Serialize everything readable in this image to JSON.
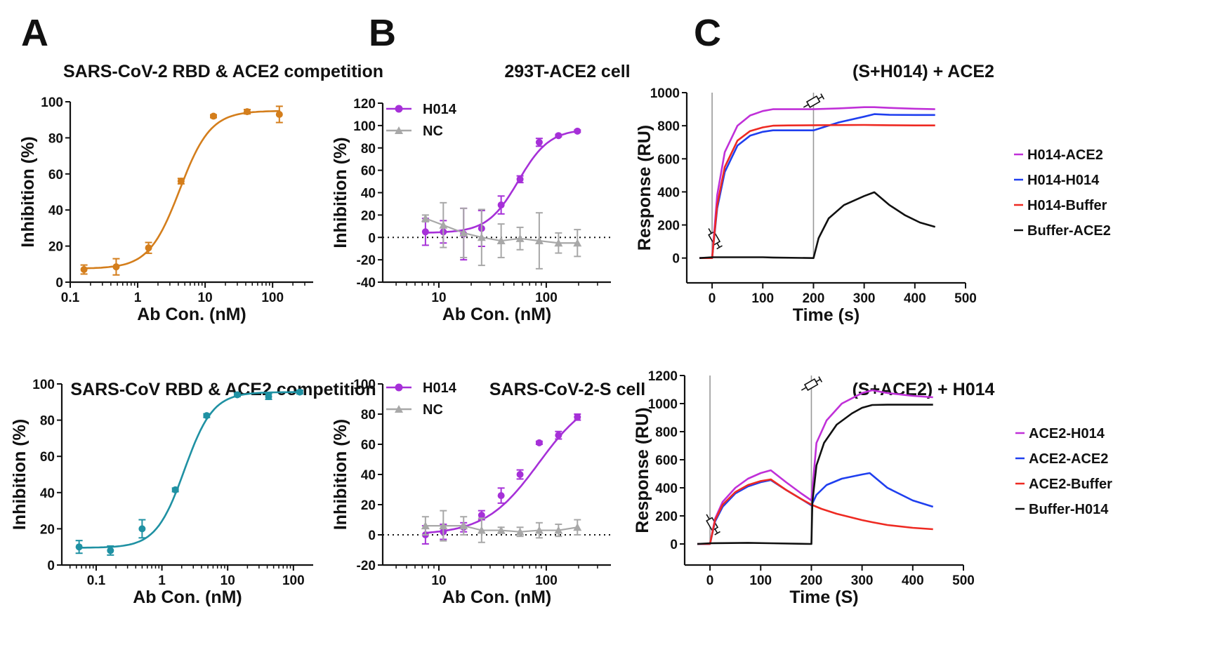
{
  "chart_data": [
    {
      "panel": "A",
      "type": "scatter",
      "title": "SARS-CoV-2  RBD & ACE2 competition",
      "xlabel": "Ab Con. (nM)",
      "ylabel": "Inhibition (%)",
      "xscale": "log",
      "xlim": [
        0.1,
        400
      ],
      "ylim": [
        0,
        100
      ],
      "xticks": [
        0.1,
        1,
        10,
        100
      ],
      "xtick_labels": [
        "0.1",
        "1",
        "10",
        "100"
      ],
      "yticks": [
        0,
        20,
        40,
        60,
        80,
        100
      ],
      "color": "#D47E1C",
      "fit": {
        "bottom": 7.5,
        "top": 95,
        "ec50": 4.2,
        "hill": 1.9,
        "xmin": 0.16,
        "xmax": 130
      },
      "series": [
        {
          "color": "#D47E1C",
          "marker": "circle",
          "points": [
            {
              "x": 0.16,
              "y": 7,
              "err": 2.5
            },
            {
              "x": 0.48,
              "y": 8.5,
              "err": 4.5
            },
            {
              "x": 1.45,
              "y": 19,
              "err": 3
            },
            {
              "x": 4.4,
              "y": 56,
              "err": 1.5
            },
            {
              "x": 13.3,
              "y": 92,
              "err": 0.8
            },
            {
              "x": 42,
              "y": 94.5,
              "err": 1.2
            },
            {
              "x": 126,
              "y": 93,
              "err": 4.5
            }
          ]
        }
      ]
    },
    {
      "panel": "",
      "type": "scatter",
      "title": "SARS-CoV RBD & ACE2 competition",
      "xlabel": "Ab Con. (nM)",
      "ylabel": "Inhibition (%)",
      "xscale": "log",
      "xlim": [
        0.03,
        200
      ],
      "ylim": [
        0,
        100
      ],
      "xticks": [
        0.1,
        1,
        10,
        100
      ],
      "xtick_labels": [
        "0.1",
        "1",
        "10",
        "100"
      ],
      "yticks": [
        0,
        20,
        40,
        60,
        80,
        100
      ],
      "color": "#1F91A3",
      "fit": {
        "bottom": 9.5,
        "top": 95.5,
        "ec50": 2.2,
        "hill": 2.0,
        "xmin": 0.055,
        "xmax": 125
      },
      "series": [
        {
          "color": "#1F91A3",
          "marker": "circle",
          "points": [
            {
              "x": 0.055,
              "y": 10,
              "err": 3.5
            },
            {
              "x": 0.165,
              "y": 8,
              "err": 2.5
            },
            {
              "x": 0.5,
              "y": 20,
              "err": 5
            },
            {
              "x": 1.6,
              "y": 41.5,
              "err": 1
            },
            {
              "x": 4.8,
              "y": 82.5,
              "err": 1
            },
            {
              "x": 14,
              "y": 94,
              "err": 1
            },
            {
              "x": 42,
              "y": 93,
              "err": 1.5
            },
            {
              "x": 125,
              "y": 95.5,
              "err": 1
            }
          ]
        }
      ]
    },
    {
      "panel": "B",
      "type": "scatter",
      "title": "293T-ACE2 cell",
      "xlabel": "Ab Con. (nM)",
      "ylabel": "Inhibition (%)",
      "xscale": "log",
      "xlim": [
        3,
        400
      ],
      "ylim": [
        -40,
        120
      ],
      "xticks": [
        10,
        100
      ],
      "xtick_labels": [
        "10",
        "100"
      ],
      "yticks": [
        -40,
        -20,
        0,
        20,
        40,
        60,
        80,
        100,
        120
      ],
      "zero_line": "dotted",
      "fit": {
        "bottom": 4,
        "top": 97,
        "ec50": 55,
        "hill": 3.0,
        "xmin": 7.5,
        "xmax": 200
      },
      "series": [
        {
          "name": "H014",
          "color": "#A630D8",
          "marker": "circle",
          "points": [
            {
              "x": 7.5,
              "y": 5,
              "err": 12
            },
            {
              "x": 11,
              "y": 5,
              "err": 10
            },
            {
              "x": 17,
              "y": 3,
              "err": 23
            },
            {
              "x": 25,
              "y": 8,
              "err": 16
            },
            {
              "x": 38,
              "y": 29,
              "err": 8
            },
            {
              "x": 57,
              "y": 52,
              "err": 3
            },
            {
              "x": 86,
              "y": 85,
              "err": 3.5
            },
            {
              "x": 130,
              "y": 91,
              "err": 1
            },
            {
              "x": 195,
              "y": 95,
              "err": 1
            }
          ]
        },
        {
          "name": "NC",
          "color": "#A8A8A8",
          "marker": "triangle",
          "points": [
            {
              "x": 7.5,
              "y": 17,
              "err": 3
            },
            {
              "x": 11,
              "y": 11,
              "err": 20
            },
            {
              "x": 17,
              "y": 4,
              "err": 22
            },
            {
              "x": 25,
              "y": 0,
              "err": 25
            },
            {
              "x": 38,
              "y": -3,
              "err": 15
            },
            {
              "x": 57,
              "y": -1,
              "err": 10
            },
            {
              "x": 86,
              "y": -3,
              "err": 25
            },
            {
              "x": 130,
              "y": -5,
              "err": 9
            },
            {
              "x": 195,
              "y": -5,
              "err": 12
            }
          ]
        }
      ]
    },
    {
      "panel": "",
      "type": "scatter",
      "title": "SARS-CoV-2-S cell",
      "xlabel": "Ab Con. (nM)",
      "ylabel": "Inhibition (%)",
      "xscale": "log",
      "xlim": [
        3,
        400
      ],
      "ylim": [
        -20,
        100
      ],
      "xticks": [
        10,
        100
      ],
      "xtick_labels": [
        "10",
        "100"
      ],
      "yticks": [
        -20,
        0,
        20,
        40,
        60,
        80,
        100
      ],
      "zero_line": "dotted",
      "fit": {
        "bottom": 0,
        "top": 95,
        "ec50": 85,
        "hill": 1.75,
        "xmin": 7.5,
        "xmax": 200
      },
      "series": [
        {
          "name": "H014",
          "color": "#A630D8",
          "marker": "circle",
          "points": [
            {
              "x": 7.5,
              "y": 0,
              "err": 6
            },
            {
              "x": 11,
              "y": 2,
              "err": 5
            },
            {
              "x": 17,
              "y": 5,
              "err": 3
            },
            {
              "x": 25,
              "y": 13,
              "err": 3
            },
            {
              "x": 38,
              "y": 26,
              "err": 5
            },
            {
              "x": 57,
              "y": 40,
              "err": 3
            },
            {
              "x": 86,
              "y": 61,
              "err": 1
            },
            {
              "x": 130,
              "y": 66,
              "err": 2.5
            },
            {
              "x": 195,
              "y": 78,
              "err": 2
            }
          ]
        },
        {
          "name": "NC",
          "color": "#A8A8A8",
          "marker": "triangle",
          "points": [
            {
              "x": 7.5,
              "y": 6,
              "err": 6
            },
            {
              "x": 11,
              "y": 6,
              "err": 10
            },
            {
              "x": 17,
              "y": 6,
              "err": 6
            },
            {
              "x": 25,
              "y": 3,
              "err": 8
            },
            {
              "x": 38,
              "y": 3,
              "err": 2
            },
            {
              "x": 57,
              "y": 2,
              "err": 3
            },
            {
              "x": 86,
              "y": 3,
              "err": 5
            },
            {
              "x": 130,
              "y": 3,
              "err": 4
            },
            {
              "x": 195,
              "y": 5,
              "err": 5
            }
          ]
        }
      ]
    },
    {
      "panel": "C",
      "type": "line",
      "title": "(S+H014) + ACE2",
      "xlabel": "Time (s)",
      "ylabel": "Response (RU)",
      "xlim": [
        -50,
        500
      ],
      "ylim": [
        -150,
        1000
      ],
      "xticks": [
        0,
        100,
        200,
        300,
        400,
        500
      ],
      "yticks": [
        0,
        200,
        400,
        600,
        800,
        1000
      ],
      "injection_times": [
        0,
        200
      ],
      "series": [
        {
          "name": "H014-ACE2",
          "color": "#C030D8",
          "x": [
            -25,
            0,
            10,
            25,
            50,
            75,
            100,
            120,
            150,
            200,
            250,
            300,
            320,
            350,
            400,
            440
          ],
          "y": [
            0,
            0,
            380,
            640,
            800,
            862,
            889,
            900,
            900,
            900,
            905,
            912,
            912,
            908,
            903,
            900
          ]
        },
        {
          "name": "H014-H014",
          "color": "#1F3FEF",
          "x": [
            -25,
            0,
            10,
            25,
            50,
            75,
            100,
            120,
            150,
            200,
            250,
            300,
            320,
            350,
            400,
            440
          ],
          "y": [
            0,
            0,
            300,
            520,
            680,
            740,
            763,
            772,
            772,
            772,
            820,
            855,
            870,
            866,
            865,
            865
          ]
        },
        {
          "name": "H014-Buffer",
          "color": "#EE2A22",
          "x": [
            -25,
            0,
            10,
            25,
            50,
            75,
            100,
            120,
            150,
            200,
            250,
            300,
            320,
            350,
            400,
            440
          ],
          "y": [
            0,
            0,
            320,
            550,
            710,
            768,
            790,
            800,
            802,
            803,
            804,
            805,
            804,
            803,
            802,
            802
          ]
        },
        {
          "name": "Buffer-ACE2",
          "color": "#111111",
          "x": [
            -25,
            0,
            100,
            120,
            200,
            210,
            230,
            260,
            300,
            320,
            350,
            380,
            410,
            440
          ],
          "y": [
            0,
            5,
            5,
            3,
            0,
            120,
            240,
            320,
            375,
            398,
            320,
            260,
            215,
            188
          ]
        }
      ]
    },
    {
      "panel": "",
      "type": "line",
      "title": "(S+ACE2) + H014",
      "xlabel": "Time (S)",
      "ylabel": "Response (RU)",
      "xlim": [
        -50,
        500
      ],
      "ylim": [
        -150,
        1200
      ],
      "xticks": [
        0,
        100,
        200,
        300,
        400,
        500
      ],
      "yticks": [
        0,
        200,
        400,
        600,
        800,
        1000,
        1200
      ],
      "injection_times": [
        0,
        200
      ],
      "series": [
        {
          "name": "ACE2-H014",
          "color": "#C030D8",
          "x": [
            -25,
            0,
            10,
            25,
            50,
            75,
            100,
            120,
            150,
            180,
            200,
            210,
            230,
            260,
            300,
            320,
            350,
            400,
            440
          ],
          "y": [
            0,
            0,
            180,
            300,
            400,
            465,
            505,
            525,
            440,
            360,
            310,
            720,
            880,
            1000,
            1075,
            1095,
            1075,
            1055,
            1045
          ]
        },
        {
          "name": "ACE2-ACE2",
          "color": "#1F3FEF",
          "x": [
            -25,
            0,
            10,
            25,
            50,
            75,
            100,
            120,
            150,
            180,
            200,
            210,
            230,
            260,
            300,
            315,
            350,
            400,
            440
          ],
          "y": [
            0,
            0,
            160,
            265,
            360,
            410,
            440,
            455,
            385,
            320,
            275,
            350,
            420,
            465,
            495,
            505,
            400,
            310,
            265
          ]
        },
        {
          "name": "ACE2-Buffer",
          "color": "#EE2A22",
          "x": [
            -25,
            0,
            10,
            25,
            50,
            75,
            100,
            120,
            150,
            180,
            200,
            220,
            250,
            300,
            320,
            350,
            400,
            440
          ],
          "y": [
            0,
            0,
            170,
            280,
            370,
            420,
            448,
            460,
            385,
            320,
            280,
            250,
            215,
            170,
            155,
            135,
            115,
            105
          ]
        },
        {
          "name": "Buffer-H014",
          "color": "#111111",
          "x": [
            -25,
            0,
            75,
            120,
            200,
            202,
            210,
            225,
            250,
            280,
            300,
            320,
            350,
            400,
            440
          ],
          "y": [
            0,
            5,
            8,
            5,
            0,
            300,
            560,
            720,
            850,
            930,
            970,
            990,
            992,
            992,
            992
          ]
        }
      ]
    }
  ]
}
